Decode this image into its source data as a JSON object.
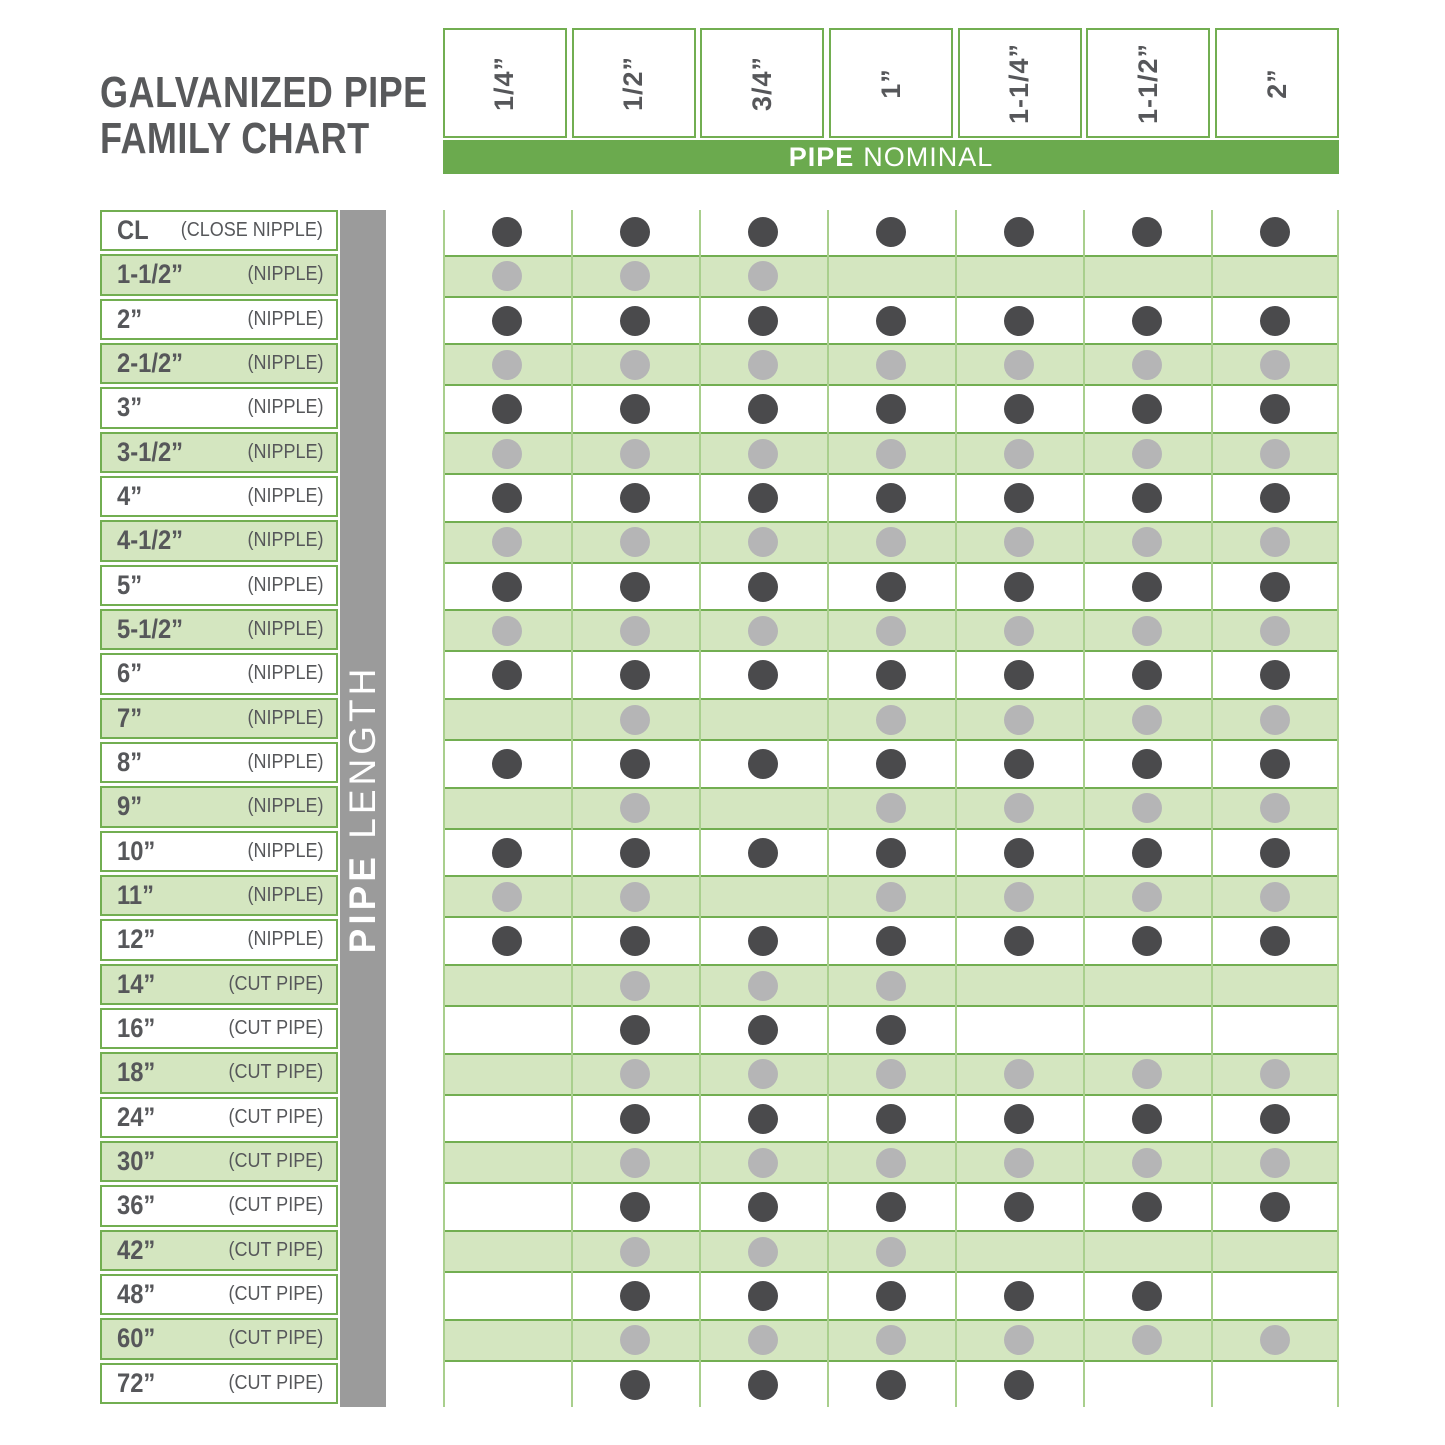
{
  "title": {
    "line1": "GALVANIZED PIPE",
    "line2": "FAMILY CHART"
  },
  "colors": {
    "band_green": "#6baa4e",
    "row_green": "#d4e6c0",
    "border_green": "#72ae51",
    "grid_line_green": "#a9cf8d",
    "sidebar_gray": "#9b9b9b",
    "dark_dot": "#4a4a4c",
    "light_dot": "#b5b5b6",
    "text_dark": "#56575a"
  },
  "chart_data": {
    "type": "table",
    "title": "GALVANIZED PIPE FAMILY CHART",
    "column_axis": {
      "bold": "PIPE",
      "rest": "NOMINAL"
    },
    "row_axis": {
      "bold": "PIPE",
      "rest": "LENGTH"
    },
    "columns": [
      "1/4”",
      "1/2”",
      "3/4”",
      "1”",
      "1-1/4”",
      "1-1/2”",
      "2”"
    ],
    "legend_note": "dot = size combination available; dark dots on white rows, light dots on green rows",
    "rows": [
      {
        "length": "CL",
        "type": "(CLOSE NIPPLE)",
        "shade": "white",
        "available": [
          1,
          1,
          1,
          1,
          1,
          1,
          1
        ]
      },
      {
        "length": "1-1/2”",
        "type": "(NIPPLE)",
        "shade": "green",
        "available": [
          1,
          1,
          1,
          0,
          0,
          0,
          0
        ]
      },
      {
        "length": "2”",
        "type": "(NIPPLE)",
        "shade": "white",
        "available": [
          1,
          1,
          1,
          1,
          1,
          1,
          1
        ]
      },
      {
        "length": "2-1/2”",
        "type": "(NIPPLE)",
        "shade": "green",
        "available": [
          1,
          1,
          1,
          1,
          1,
          1,
          1
        ]
      },
      {
        "length": "3”",
        "type": "(NIPPLE)",
        "shade": "white",
        "available": [
          1,
          1,
          1,
          1,
          1,
          1,
          1
        ]
      },
      {
        "length": "3-1/2”",
        "type": "(NIPPLE)",
        "shade": "green",
        "available": [
          1,
          1,
          1,
          1,
          1,
          1,
          1
        ]
      },
      {
        "length": "4”",
        "type": "(NIPPLE)",
        "shade": "white",
        "available": [
          1,
          1,
          1,
          1,
          1,
          1,
          1
        ]
      },
      {
        "length": "4-1/2”",
        "type": "(NIPPLE)",
        "shade": "green",
        "available": [
          1,
          1,
          1,
          1,
          1,
          1,
          1
        ]
      },
      {
        "length": "5”",
        "type": "(NIPPLE)",
        "shade": "white",
        "available": [
          1,
          1,
          1,
          1,
          1,
          1,
          1
        ]
      },
      {
        "length": "5-1/2”",
        "type": "(NIPPLE)",
        "shade": "green",
        "available": [
          1,
          1,
          1,
          1,
          1,
          1,
          1
        ]
      },
      {
        "length": "6”",
        "type": "(NIPPLE)",
        "shade": "white",
        "available": [
          1,
          1,
          1,
          1,
          1,
          1,
          1
        ]
      },
      {
        "length": "7”",
        "type": "(NIPPLE)",
        "shade": "green",
        "available": [
          0,
          1,
          0,
          1,
          1,
          1,
          1
        ]
      },
      {
        "length": "8”",
        "type": "(NIPPLE)",
        "shade": "white",
        "available": [
          1,
          1,
          1,
          1,
          1,
          1,
          1
        ]
      },
      {
        "length": "9”",
        "type": "(NIPPLE)",
        "shade": "green",
        "available": [
          0,
          1,
          0,
          1,
          1,
          1,
          1
        ]
      },
      {
        "length": "10”",
        "type": "(NIPPLE)",
        "shade": "white",
        "available": [
          1,
          1,
          1,
          1,
          1,
          1,
          1
        ]
      },
      {
        "length": "11”",
        "type": "(NIPPLE)",
        "shade": "green",
        "available": [
          1,
          1,
          0,
          1,
          1,
          1,
          1
        ]
      },
      {
        "length": "12”",
        "type": "(NIPPLE)",
        "shade": "white",
        "available": [
          1,
          1,
          1,
          1,
          1,
          1,
          1
        ]
      },
      {
        "length": "14”",
        "type": "(CUT PIPE)",
        "shade": "green",
        "available": [
          0,
          1,
          1,
          1,
          0,
          0,
          0
        ]
      },
      {
        "length": "16”",
        "type": "(CUT PIPE)",
        "shade": "white",
        "available": [
          0,
          1,
          1,
          1,
          0,
          0,
          0
        ]
      },
      {
        "length": "18”",
        "type": "(CUT PIPE)",
        "shade": "green",
        "available": [
          0,
          1,
          1,
          1,
          1,
          1,
          1
        ]
      },
      {
        "length": "24”",
        "type": "(CUT PIPE)",
        "shade": "white",
        "available": [
          0,
          1,
          1,
          1,
          1,
          1,
          1
        ]
      },
      {
        "length": "30”",
        "type": "(CUT PIPE)",
        "shade": "green",
        "available": [
          0,
          1,
          1,
          1,
          1,
          1,
          1
        ]
      },
      {
        "length": "36”",
        "type": "(CUT PIPE)",
        "shade": "white",
        "available": [
          0,
          1,
          1,
          1,
          1,
          1,
          1
        ]
      },
      {
        "length": "42”",
        "type": "(CUT PIPE)",
        "shade": "green",
        "available": [
          0,
          1,
          1,
          1,
          0,
          0,
          0
        ]
      },
      {
        "length": "48”",
        "type": "(CUT PIPE)",
        "shade": "white",
        "available": [
          0,
          1,
          1,
          1,
          1,
          1,
          0
        ]
      },
      {
        "length": "60”",
        "type": "(CUT PIPE)",
        "shade": "green",
        "available": [
          0,
          1,
          1,
          1,
          1,
          1,
          1
        ]
      },
      {
        "length": "72”",
        "type": "(CUT PIPE)",
        "shade": "white",
        "available": [
          0,
          1,
          1,
          1,
          1,
          0,
          0
        ]
      }
    ]
  }
}
